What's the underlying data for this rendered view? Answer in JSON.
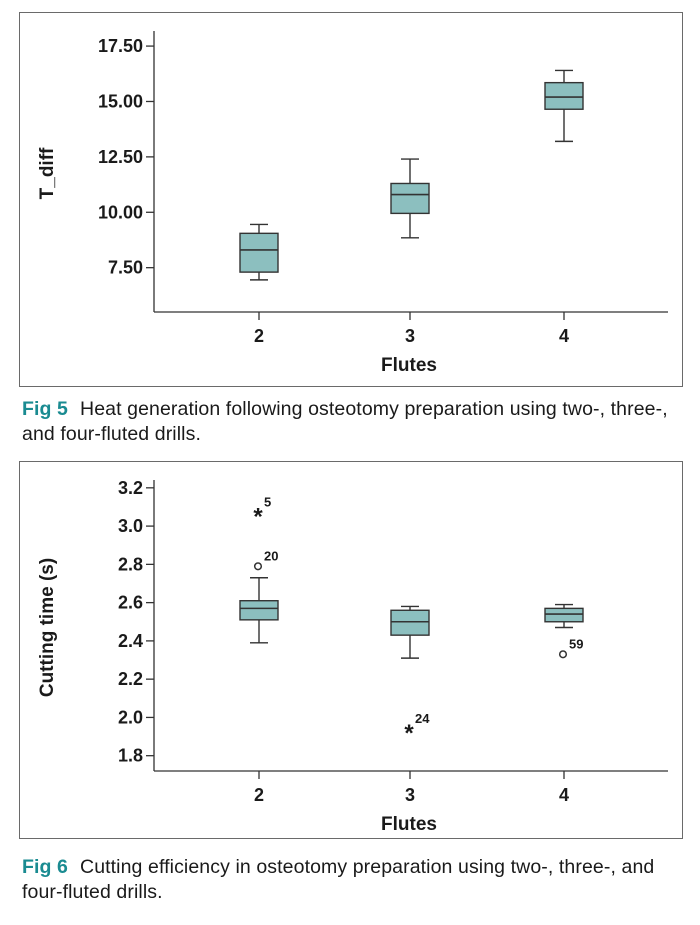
{
  "colors": {
    "box_fill": "#8cbfbf",
    "line": "#333333",
    "fig_label": "#1a8b91"
  },
  "figures": [
    {
      "caption_label": "Fig 5",
      "caption_text": "Heat generation following osteotomy preparation using two-, three-, and four-fluted drills."
    },
    {
      "caption_label": "Fig 6",
      "caption_text": "Cutting efficiency in osteotomy preparation using two-, three-, and four-fluted drills."
    }
  ],
  "chart_data": [
    {
      "type": "boxplot",
      "xlabel": "Flutes",
      "ylabel": "T_diff",
      "ylim": [
        5.5,
        18.0
      ],
      "yticks": [
        7.5,
        10.0,
        12.5,
        15.0,
        17.5
      ],
      "ytick_labels": [
        "7.50",
        "10.00",
        "12.50",
        "15.00",
        "17.50"
      ],
      "categories": [
        "2",
        "3",
        "4"
      ],
      "boxes": [
        {
          "category": "2",
          "whisker_low": 6.95,
          "q1": 7.3,
          "median": 8.3,
          "q3": 9.05,
          "whisker_high": 9.45
        },
        {
          "category": "3",
          "whisker_low": 8.85,
          "q1": 9.95,
          "median": 10.8,
          "q3": 11.3,
          "whisker_high": 12.4
        },
        {
          "category": "4",
          "whisker_low": 13.2,
          "q1": 14.65,
          "median": 15.2,
          "q3": 15.85,
          "whisker_high": 16.4
        }
      ],
      "outliers": []
    },
    {
      "type": "boxplot",
      "xlabel": "Flutes",
      "ylabel": "Cutting time (s)",
      "ylim": [
        1.72,
        3.22
      ],
      "yticks": [
        1.8,
        2.0,
        2.2,
        2.4,
        2.6,
        2.8,
        3.0,
        3.2
      ],
      "ytick_labels": [
        "1.8",
        "2.0",
        "2.2",
        "2.4",
        "2.6",
        "2.8",
        "3.0",
        "3.2"
      ],
      "categories": [
        "2",
        "3",
        "4"
      ],
      "boxes": [
        {
          "category": "2",
          "whisker_low": 2.39,
          "q1": 2.51,
          "median": 2.57,
          "q3": 2.61,
          "whisker_high": 2.73
        },
        {
          "category": "3",
          "whisker_low": 2.31,
          "q1": 2.43,
          "median": 2.5,
          "q3": 2.56,
          "whisker_high": 2.58
        },
        {
          "category": "4",
          "whisker_low": 2.47,
          "q1": 2.5,
          "median": 2.54,
          "q3": 2.57,
          "whisker_high": 2.59
        }
      ],
      "outliers": [
        {
          "category": "2",
          "value": 3.07,
          "marker": "*",
          "label": "5"
        },
        {
          "category": "2",
          "value": 2.79,
          "marker": "o",
          "label": "20"
        },
        {
          "category": "3",
          "value": 1.94,
          "marker": "*",
          "label": "24"
        },
        {
          "category": "4",
          "value": 2.33,
          "marker": "o",
          "label": "59"
        }
      ]
    }
  ]
}
